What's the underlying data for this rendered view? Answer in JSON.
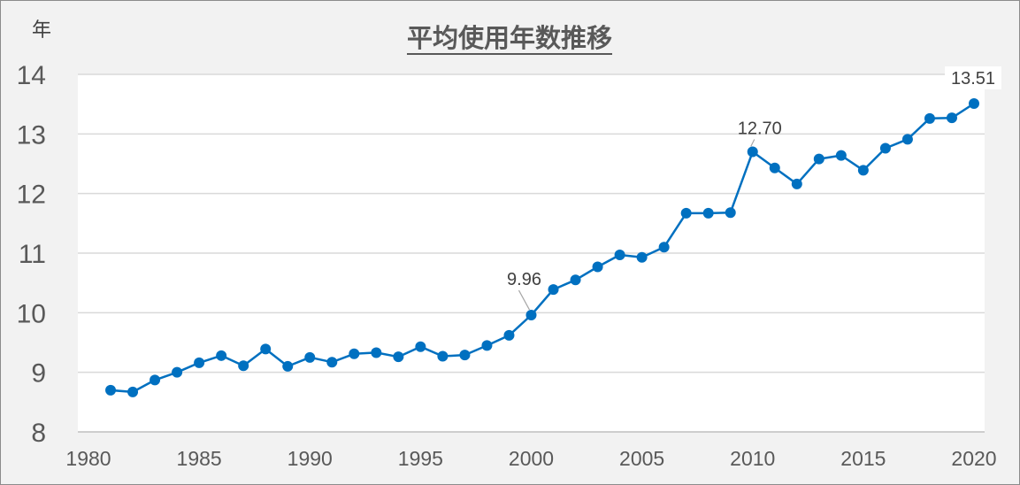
{
  "chart_data": {
    "type": "line",
    "title": "平均使用年数推移",
    "ylabel": "年",
    "xlabel": "",
    "xlim": [
      1980,
      2020
    ],
    "ylim": [
      8,
      14
    ],
    "x_ticks": [
      "1980",
      "1985",
      "1990",
      "1995",
      "2000",
      "2005",
      "2010",
      "2015",
      "2020"
    ],
    "y_ticks": [
      "8",
      "9",
      "10",
      "11",
      "12",
      "13",
      "14"
    ],
    "grid": "horizontal",
    "legend": "none",
    "colors": {
      "line": "#0070c0",
      "grid": "#d9d9d9",
      "text": "#595959",
      "background": "#f2f2f2",
      "plot_background": "#ffffff"
    },
    "x": [
      1981,
      1982,
      1983,
      1984,
      1985,
      1986,
      1987,
      1988,
      1989,
      1990,
      1991,
      1992,
      1993,
      1994,
      1995,
      1996,
      1997,
      1998,
      1999,
      2000,
      2001,
      2002,
      2003,
      2004,
      2005,
      2006,
      2007,
      2008,
      2009,
      2010,
      2011,
      2012,
      2013,
      2014,
      2015,
      2016,
      2017,
      2018,
      2019,
      2020
    ],
    "series": [
      {
        "values": [
          8.7,
          8.67,
          8.87,
          9.0,
          9.16,
          9.28,
          9.11,
          9.39,
          9.1,
          9.25,
          9.17,
          9.31,
          9.33,
          9.26,
          9.43,
          9.27,
          9.29,
          9.45,
          9.62,
          9.96,
          10.39,
          10.55,
          10.77,
          10.97,
          10.93,
          11.1,
          11.67,
          11.67,
          11.68,
          12.7,
          12.43,
          12.16,
          12.58,
          12.64,
          12.39,
          12.76,
          12.91,
          13.26,
          13.27,
          13.51
        ]
      }
    ],
    "data_labels": [
      {
        "x": 2000,
        "text": "9.96"
      },
      {
        "x": 2010,
        "text": "12.70"
      },
      {
        "x": 2020,
        "text": "13.51"
      }
    ]
  }
}
